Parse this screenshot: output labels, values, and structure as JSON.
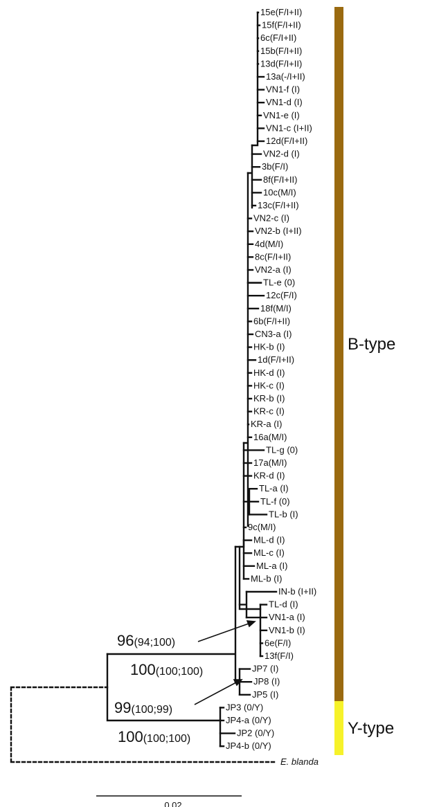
{
  "taxa": [
    "15e(F/I+II)",
    "15f(F/I+II)",
    "6c(F/I+II)",
    "15b(F/I+II)",
    "13d(F/I+II)",
    "13a(-/I+II)",
    "VN1-f (I)",
    "VN1-d (I)",
    "VN1-e (I)",
    "VN1-c (I+II)",
    "12d(F/I+II)",
    "VN2-d (I)",
    "3b(F/I)",
    "8f(F/I+II)",
    "10c(M/I)",
    "13c(F/I+II)",
    "VN2-c (I)",
    "VN2-b (I+II)",
    "4d(M/I)",
    "8c(F/I+II)",
    "VN2-a (I)",
    "TL-e (0)",
    "12c(F/I)",
    "18f(M/I)",
    "6b(F/I+II)",
    "CN3-a (I)",
    "HK-b (I)",
    "1d(F/I+II)",
    "HK-d (I)",
    "HK-c (I)",
    "KR-b (I)",
    "KR-c (I)",
    "KR-a (I)",
    "16a(M/I)",
    "TL-g (0)",
    "17a(M/I)",
    "KR-d (I)",
    "TL-a (I)",
    "TL-f (0)",
    "TL-b (I)",
    "9c(M/I)",
    "ML-d (I)",
    "ML-c (I)",
    "ML-a (I)",
    "ML-b (I)",
    "IN-b (I+II)",
    "TL-d (I)",
    "VN1-a (I)",
    "VN1-b (I)",
    "6e(F/I)",
    "13f(F/I)",
    "JP7 (I)",
    "JP8 (I)",
    "JP5 (I)",
    "JP3 (0/Y)",
    "JP4-a (0/Y)",
    "JP2 (0/Y)",
    "JP4-b (0/Y)"
  ],
  "outgroup": "E. blanda",
  "support": [
    {
      "main": "96",
      "detail": "(94;100)"
    },
    {
      "main": "100",
      "detail": "(100;100)"
    },
    {
      "main": "99",
      "detail": "(100;99)"
    },
    {
      "main": "100",
      "detail": "(100;100)"
    }
  ],
  "groups": [
    {
      "label": "B-type",
      "color": "#9a6a10"
    },
    {
      "label": "Y-type",
      "color": "#f6f22a"
    }
  ],
  "scale_bar": "0.02",
  "colors": {
    "branch": "#111111",
    "background": "#ffffff"
  }
}
